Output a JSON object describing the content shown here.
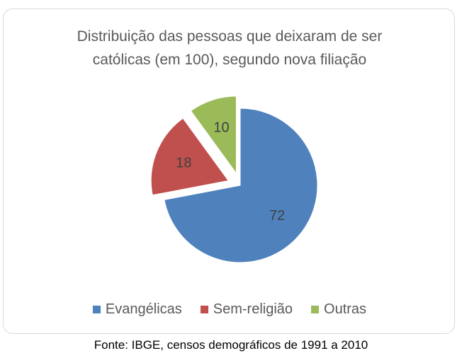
{
  "chart_data": {
    "type": "pie",
    "title": "Distribuição das pessoas que deixaram de ser\ncatólicas (em 100), segundo nova filiação",
    "categories": [
      "Evangélicas",
      "Sem-religião",
      "Outras"
    ],
    "values": [
      72,
      18,
      10
    ],
    "colors": [
      "#4f81bd",
      "#c0504d",
      "#9bbb59"
    ],
    "exploded": [
      false,
      true,
      true
    ],
    "legend_position": "bottom"
  },
  "source": "Fonte: IBGE, censos demográficos de 1991 a 2010"
}
